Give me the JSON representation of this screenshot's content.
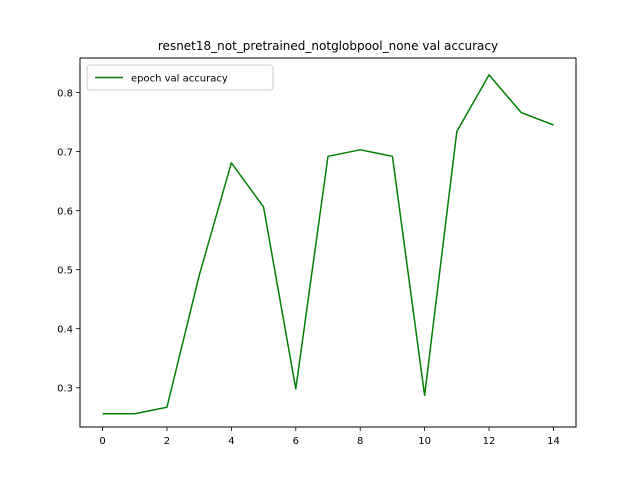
{
  "chart_data": {
    "type": "line",
    "title": "resnet18_not_pretrained_notglobpool_none val accuracy",
    "xlabel": "",
    "ylabel": "",
    "x": [
      0,
      1,
      2,
      3,
      4,
      5,
      6,
      7,
      8,
      9,
      10,
      11,
      12,
      13,
      14
    ],
    "series": [
      {
        "name": "epoch val accuracy",
        "color": "#008000",
        "values": [
          0.256,
          0.256,
          0.267,
          0.49,
          0.681,
          0.606,
          0.298,
          0.692,
          0.703,
          0.692,
          0.287,
          0.734,
          0.83,
          0.766,
          0.745
        ]
      }
    ],
    "xlim": [
      -0.7,
      14.7
    ],
    "ylim": [
      0.2335,
      0.8585
    ],
    "xticks": [
      0,
      2,
      4,
      6,
      8,
      10,
      12,
      14
    ],
    "xtick_labels": [
      "0",
      "2",
      "4",
      "6",
      "8",
      "10",
      "12",
      "14"
    ],
    "yticks": [
      0.3,
      0.4,
      0.5,
      0.6,
      0.7,
      0.8
    ],
    "ytick_labels": [
      "0.3",
      "0.4",
      "0.5",
      "0.6",
      "0.7",
      "0.8"
    ],
    "grid": false,
    "legend_position": "top-left"
  }
}
